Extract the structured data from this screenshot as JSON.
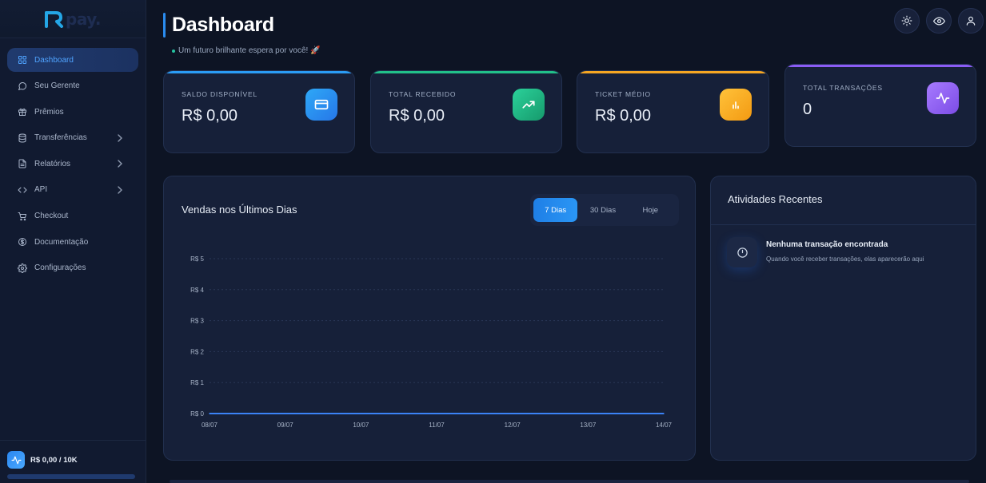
{
  "brand": {
    "logo_text": "Rpay.",
    "accent": "#2a8cf0"
  },
  "sidebar": {
    "items": [
      {
        "label": "Dashboard",
        "icon": "grid-icon",
        "active": true,
        "has_children": false
      },
      {
        "label": "Seu Gerente",
        "icon": "message-icon",
        "active": false,
        "has_children": false
      },
      {
        "label": "Prêmios",
        "icon": "gift-icon",
        "active": false,
        "has_children": false
      },
      {
        "label": "Transferências",
        "icon": "database-icon",
        "active": false,
        "has_children": true
      },
      {
        "label": "Relatórios",
        "icon": "file-icon",
        "active": false,
        "has_children": true
      },
      {
        "label": "API",
        "icon": "code-icon",
        "active": false,
        "has_children": true
      },
      {
        "label": "Checkout",
        "icon": "cart-icon",
        "active": false,
        "has_children": false
      },
      {
        "label": "Documentação",
        "icon": "dollar-circle-icon",
        "active": false,
        "has_children": false
      },
      {
        "label": "Configurações",
        "icon": "gear-icon",
        "active": false,
        "has_children": false
      }
    ],
    "limit": {
      "text": "R$ 0,00 / 10K",
      "progress_fraction": 0.0
    }
  },
  "header": {
    "title": "Dashboard",
    "subtitle": "Um futuro brilhante espera por você! 🚀",
    "buttons": [
      "sun-icon",
      "eye-icon",
      "user-icon"
    ]
  },
  "cards": [
    {
      "label": "SALDO DISPONÍVEL",
      "value": "R$ 0,00",
      "icon": "credit-card-icon",
      "color": "#2b9cf5"
    },
    {
      "label": "TOTAL RECEBIDO",
      "value": "R$ 0,00",
      "icon": "trending-up-icon",
      "color": "#22c08a"
    },
    {
      "label": "TICKET MÉDIO",
      "value": "R$ 0,00",
      "icon": "bar-chart-icon",
      "color": "#f5a623"
    },
    {
      "label": "TOTAL TRANSAÇÕES",
      "value": "0",
      "icon": "activity-icon",
      "color": "#8b5cf6"
    }
  ],
  "sales_panel": {
    "title": "Vendas nos Últimos Dias",
    "tabs": [
      {
        "label": "7 Dias",
        "active": true
      },
      {
        "label": "30 Dias",
        "active": false
      },
      {
        "label": "Hoje",
        "active": false
      }
    ]
  },
  "chart_data": {
    "type": "line",
    "title": "",
    "xlabel": "",
    "ylabel": "",
    "categories": [
      "08/07",
      "09/07",
      "10/07",
      "11/07",
      "12/07",
      "13/07",
      "14/07"
    ],
    "series": [
      {
        "values": [
          0,
          0,
          0,
          0,
          0,
          0,
          0
        ]
      }
    ],
    "ylim": [
      0,
      5
    ],
    "y_ticks": [
      "R$ 0",
      "R$ 1",
      "R$ 2",
      "R$ 3",
      "R$ 4",
      "R$ 5"
    ],
    "grid": true,
    "line_color": "#3b82f6"
  },
  "activity_panel": {
    "title": "Atividades Recentes",
    "empty_title": "Nenhuma transação encontrada",
    "empty_subtitle": "Quando você receber transações, elas aparecerão aqui"
  }
}
